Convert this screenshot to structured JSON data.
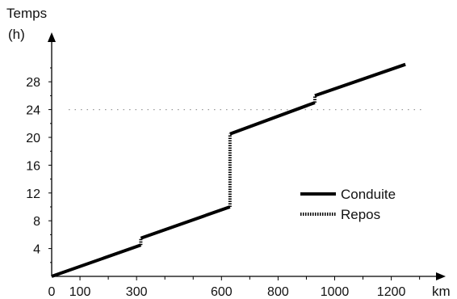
{
  "chart_data": {
    "type": "line",
    "title": "",
    "ylabel_line1": "Temps",
    "ylabel_line2": "(h)",
    "xlabel": "km",
    "x_ticks": [
      {
        "value": 0,
        "label": "0"
      },
      {
        "value": 100,
        "label": "100"
      },
      {
        "value": 300,
        "label": "300"
      },
      {
        "value": 600,
        "label": "600"
      },
      {
        "value": 800,
        "label": "800"
      },
      {
        "value": 1000,
        "label": "1000"
      },
      {
        "value": 1200,
        "label": "1200"
      }
    ],
    "x_minor_ticks": [
      200,
      400,
      500,
      700,
      900,
      1100,
      1300
    ],
    "y_ticks": [
      4,
      8,
      12,
      16,
      20,
      24,
      28
    ],
    "xlim": [
      0,
      1400
    ],
    "ylim": [
      0,
      32
    ],
    "reference_line": {
      "y": 24,
      "style": "dotted"
    },
    "series": [
      {
        "name": "Conduite",
        "style": "solid",
        "segments": [
          [
            [
              0,
              0
            ],
            [
              315,
              4.5
            ]
          ],
          [
            [
              315,
              5.5
            ],
            [
              630,
              10
            ]
          ],
          [
            [
              630,
              20.5
            ],
            [
              930,
              25
            ]
          ],
          [
            [
              930,
              26
            ],
            [
              1250,
              30.5
            ]
          ]
        ]
      },
      {
        "name": "Repos",
        "style": "dashed",
        "segments": [
          [
            [
              315,
              4.5
            ],
            [
              315,
              5.5
            ]
          ],
          [
            [
              630,
              10
            ],
            [
              630,
              20.5
            ]
          ],
          [
            [
              930,
              25
            ],
            [
              930,
              26
            ]
          ]
        ]
      }
    ],
    "legend_position": "center-right",
    "colors": {
      "line": "#000000",
      "reference": "#999999"
    }
  }
}
